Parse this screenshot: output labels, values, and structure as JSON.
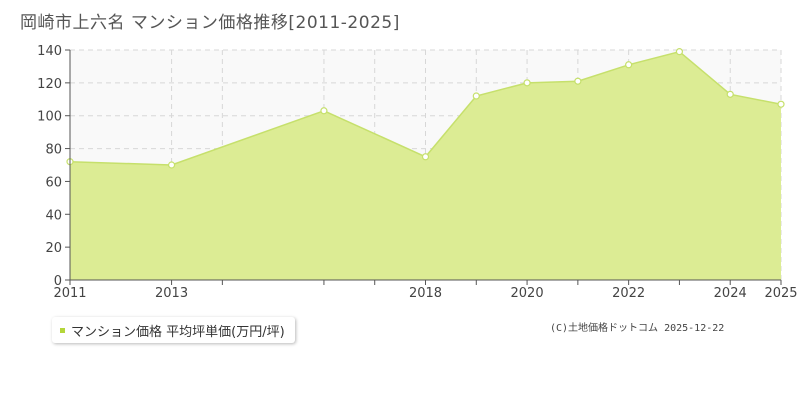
{
  "title": "岡崎市上六名 マンション価格推移[2011-2025]",
  "legend_label": "マンション価格 平均坪単価(万円/坪)",
  "copyright": "(C)土地価格ドットコム 2025-12-22",
  "colors": {
    "fill": "#dcec94",
    "line": "#c6e06c",
    "marker_stroke": "#c6e06c",
    "marker_fill": "#ffffff",
    "grid": "#d7d7d7",
    "axis": "#555555",
    "plot_bg": "#f9f9f9",
    "legend_swatch": "#b4d63a"
  },
  "chart_data": {
    "type": "area",
    "x": [
      2011,
      2013,
      2016,
      2018,
      2019,
      2020,
      2021,
      2022,
      2023,
      2024,
      2025
    ],
    "series": [
      {
        "name": "マンション価格 平均坪単価(万円/坪)",
        "values": [
          72,
          70,
          103,
          75,
          112,
          120,
          121,
          131,
          139,
          113,
          107
        ]
      }
    ],
    "xlim": [
      2011,
      2025
    ],
    "ylim": [
      0,
      140
    ],
    "x_ticks": [
      2011,
      2013,
      2014,
      2016,
      2017,
      2018,
      2019,
      2020,
      2021,
      2022,
      2023,
      2024,
      2025
    ],
    "x_tick_labels": [
      2011,
      2013,
      2018,
      2020,
      2022,
      2024,
      2025
    ],
    "y_ticks": [
      0,
      20,
      40,
      60,
      80,
      100,
      120,
      140
    ],
    "grid": true
  }
}
